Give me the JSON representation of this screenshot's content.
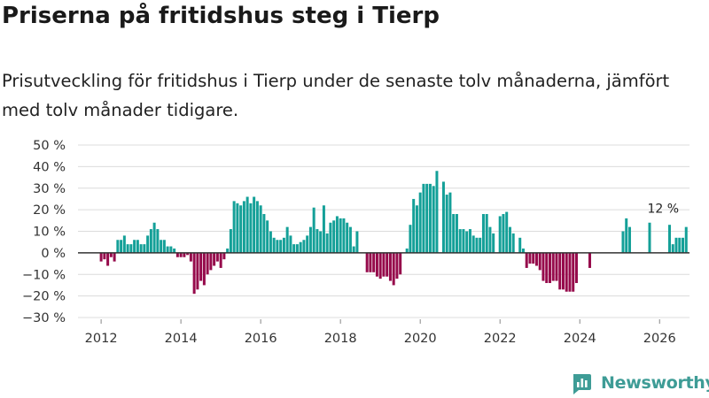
{
  "title": "Priserna på fritidshus steg i Tierp",
  "subtitle": "Prisutveckling för fritidshus i Tierp under de senaste tolv månaderna, jämfört med tolv månader tidigare.",
  "brand": {
    "name": "Newsworthy",
    "icon": "newsworthy-logo-icon"
  },
  "colors": {
    "positive": "#14a098",
    "negative": "#960a4b",
    "grid": "#dcdcdc",
    "zero_line": "#333333",
    "brand": "#3e9c96"
  },
  "chart_data": {
    "type": "bar",
    "title": "Priserna på fritidshus steg i Tierp",
    "ylabel": "",
    "xlabel": "",
    "ylim": [
      -30,
      50
    ],
    "yticks": [
      50,
      40,
      30,
      20,
      10,
      0,
      -10,
      -20,
      -30
    ],
    "ytick_labels": [
      "50 %",
      "40 %",
      "30 %",
      "20 %",
      "10 %",
      "0 %",
      "−10 %",
      "−20 %",
      "−30 %"
    ],
    "xlim": [
      2011.42,
      2026.75
    ],
    "xticks": [
      2012,
      2014,
      2016,
      2018,
      2020,
      2022,
      2024,
      2026
    ],
    "xtick_labels": [
      "2012",
      "2014",
      "2016",
      "2018",
      "2020",
      "2022",
      "2024",
      "2026"
    ],
    "start": "2011-06",
    "unit": "%",
    "annotation": {
      "label": "12 %",
      "x": 2026.0,
      "y": 12
    },
    "values": [
      0,
      0,
      0,
      0,
      0,
      0,
      0,
      -4,
      -3,
      -6,
      -2,
      -4,
      6,
      6,
      8,
      4,
      4,
      6,
      6,
      4,
      4,
      8,
      11,
      14,
      11,
      6,
      6,
      3,
      3,
      2,
      -2,
      -2,
      -2,
      -1,
      -4,
      -19,
      -17,
      -13,
      -15,
      -10,
      -8,
      -6,
      -4,
      -7,
      -3,
      2,
      11,
      24,
      23,
      22,
      24,
      26,
      23,
      26,
      24,
      22,
      18,
      15,
      10,
      7,
      6,
      6,
      7,
      12,
      8,
      4,
      4,
      5,
      6,
      8,
      12,
      21,
      11,
      10,
      22,
      9,
      14,
      15,
      17,
      16,
      16,
      14,
      12,
      3,
      10,
      0,
      0,
      -9,
      -9,
      -9,
      -11,
      -12,
      -11,
      -11,
      -13,
      -15,
      -12,
      -10,
      0,
      2,
      13,
      25,
      22,
      28,
      32,
      32,
      32,
      31,
      38,
      0,
      33,
      27,
      28,
      18,
      18,
      11,
      11,
      10,
      11,
      8,
      7,
      7,
      18,
      18,
      12,
      9,
      0,
      17,
      18,
      19,
      12,
      9,
      0,
      7,
      2,
      -7,
      -5,
      -5,
      -6,
      -8,
      -13,
      -14,
      -14,
      -13,
      -13,
      -17,
      -17,
      -18,
      -18,
      -18,
      -14,
      0,
      0,
      0,
      -7,
      0,
      0,
      0,
      0,
      0,
      0,
      0,
      0,
      0,
      10,
      16,
      12,
      0,
      0,
      0,
      0,
      0,
      14,
      0,
      0,
      0,
      0,
      0,
      13,
      4,
      7,
      7,
      7,
      12
    ]
  }
}
